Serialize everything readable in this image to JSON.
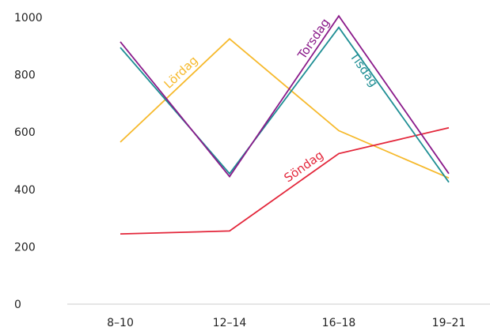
{
  "chart_data": {
    "type": "line",
    "title": "",
    "xlabel": "",
    "ylabel": "",
    "categories": [
      "8–10",
      "12–14",
      "16–18",
      "19–21"
    ],
    "ylim": [
      0,
      1000
    ],
    "yticks": [
      0,
      200,
      400,
      600,
      800,
      1000
    ],
    "grid": false,
    "legend": "none (series names printed along the lines)",
    "series": [
      {
        "name": "Lördag",
        "color": "#f6b92b",
        "values": [
          565,
          925,
          605,
          440
        ]
      },
      {
        "name": "Söndag",
        "color": "#e3263a",
        "values": [
          245,
          255,
          525,
          615
        ]
      },
      {
        "name": "Tisdag",
        "color": "#1e8e94",
        "values": [
          895,
          455,
          965,
          425
        ]
      },
      {
        "name": "Torsdag",
        "color": "#8a1a8a",
        "values": [
          915,
          445,
          1005,
          455
        ]
      }
    ]
  }
}
